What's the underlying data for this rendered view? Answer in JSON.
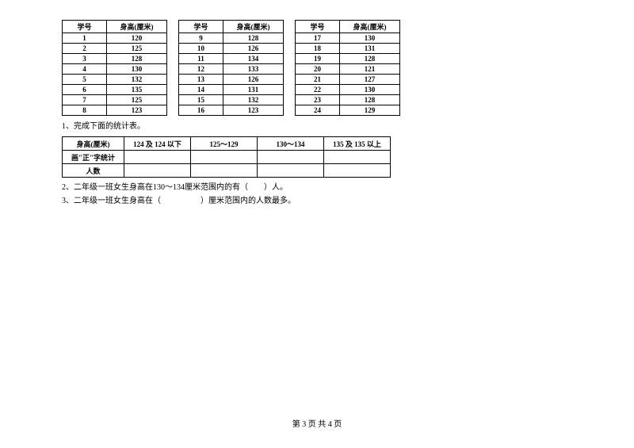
{
  "headers": {
    "id": "学号",
    "height": "身高(厘米)"
  },
  "tables": [
    [
      {
        "id": "1",
        "h": "120"
      },
      {
        "id": "2",
        "h": "125"
      },
      {
        "id": "3",
        "h": "128"
      },
      {
        "id": "4",
        "h": "130"
      },
      {
        "id": "5",
        "h": "132"
      },
      {
        "id": "6",
        "h": "135"
      },
      {
        "id": "7",
        "h": "125"
      },
      {
        "id": "8",
        "h": "123"
      }
    ],
    [
      {
        "id": "9",
        "h": "128"
      },
      {
        "id": "10",
        "h": "126"
      },
      {
        "id": "11",
        "h": "134"
      },
      {
        "id": "12",
        "h": "133"
      },
      {
        "id": "13",
        "h": "126"
      },
      {
        "id": "14",
        "h": "131"
      },
      {
        "id": "15",
        "h": "132"
      },
      {
        "id": "16",
        "h": "123"
      }
    ],
    [
      {
        "id": "17",
        "h": "130"
      },
      {
        "id": "18",
        "h": "131"
      },
      {
        "id": "19",
        "h": "128"
      },
      {
        "id": "20",
        "h": "121"
      },
      {
        "id": "21",
        "h": "127"
      },
      {
        "id": "22",
        "h": "130"
      },
      {
        "id": "23",
        "h": "128"
      },
      {
        "id": "24",
        "h": "129"
      }
    ]
  ],
  "q1": "1、完成下面的统计表。",
  "summary": {
    "rowLabels": [
      "身高(厘米)",
      "画\"正\"字统计",
      "人数"
    ],
    "ranges": [
      "124 及 124 以下",
      "125～129",
      "130～134",
      "135 及 135 以上"
    ]
  },
  "q2": "2、二年级一班女生身高在130～134厘米范围内的有（　　）人。",
  "q3": "3、二年级一班女生身高在（　　　　　）厘米范围内的人数最多。",
  "footer": "第 3 页 共 4 页",
  "style": {
    "borderColor": "#000000",
    "background": "#ffffff",
    "textColor": "#000000",
    "fontFamily": "SimSun, serif",
    "baseFontSize": 10,
    "tableFontSize": 9,
    "colIdWidth": 56,
    "colHeightWidth": 76,
    "summaryLabelWidth": 78,
    "summaryRangeWidth": 84,
    "tableGap": 14
  }
}
